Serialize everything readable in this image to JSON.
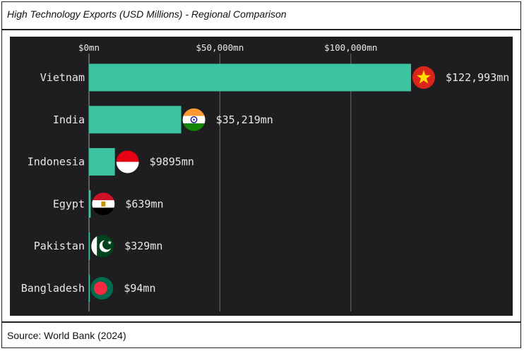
{
  "header": {
    "title": "High Technology Exports (USD Millions) - Regional Comparison"
  },
  "footer": {
    "source": "Source: World Bank (2024)"
  },
  "chart_data": {
    "type": "bar",
    "orientation": "horizontal",
    "title": "High Technology Exports (USD Millions) - Regional Comparison",
    "xlabel": "",
    "ylabel": "",
    "xlim": [
      0,
      130000
    ],
    "ticks": [
      {
        "value": 0,
        "label": "$0mn"
      },
      {
        "value": 50000,
        "label": "$50,000mn"
      },
      {
        "value": 100000,
        "label": "$100,000mn"
      }
    ],
    "categories": [
      "Vietnam",
      "India",
      "Indonesia",
      "Egypt",
      "Pakistan",
      "Bangladesh"
    ],
    "values": [
      122993,
      35219,
      9895,
      639,
      329,
      94
    ],
    "value_labels": [
      "$122,993mn",
      "$35,219mn",
      "$9895mn",
      "$639mn",
      "$329mn",
      "$94mn"
    ],
    "flags": [
      "vietnam-flag",
      "india-flag",
      "indonesia-flag",
      "egypt-flag",
      "pakistan-flag",
      "bangladesh-flag"
    ],
    "grid": true,
    "legend": "none",
    "colors": {
      "bar": "#3cc4a0",
      "background": "#1e1e21",
      "grid": "#6a6a6e",
      "text": "#e8e8e8"
    }
  }
}
